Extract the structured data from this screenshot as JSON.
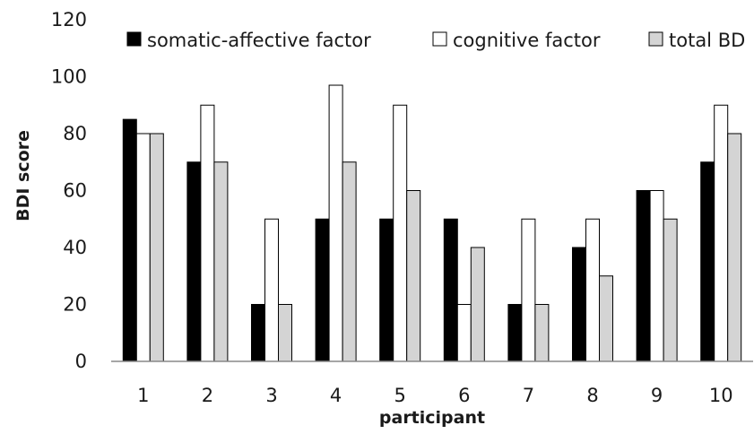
{
  "chart_data": {
    "type": "bar",
    "title": "",
    "xlabel": "participant",
    "ylabel": "BDI score",
    "ylim": [
      0,
      120
    ],
    "yticks": [
      0,
      20,
      40,
      60,
      80,
      100,
      120
    ],
    "categories": [
      "1",
      "2",
      "3",
      "4",
      "5",
      "6",
      "7",
      "8",
      "9",
      "10"
    ],
    "series": [
      {
        "name": "somatic-affective factor",
        "color": "#000000",
        "values": [
          85,
          70,
          20,
          50,
          50,
          50,
          20,
          40,
          60,
          70
        ]
      },
      {
        "name": "cognitive factor",
        "color": "#ffffff",
        "values": [
          80,
          90,
          50,
          97,
          90,
          20,
          50,
          50,
          60,
          90
        ]
      },
      {
        "name": "total BD",
        "color": "#d4d4d4",
        "values": [
          80,
          70,
          20,
          70,
          60,
          40,
          20,
          30,
          50,
          80
        ]
      }
    ],
    "grid": false,
    "legend": "top"
  }
}
